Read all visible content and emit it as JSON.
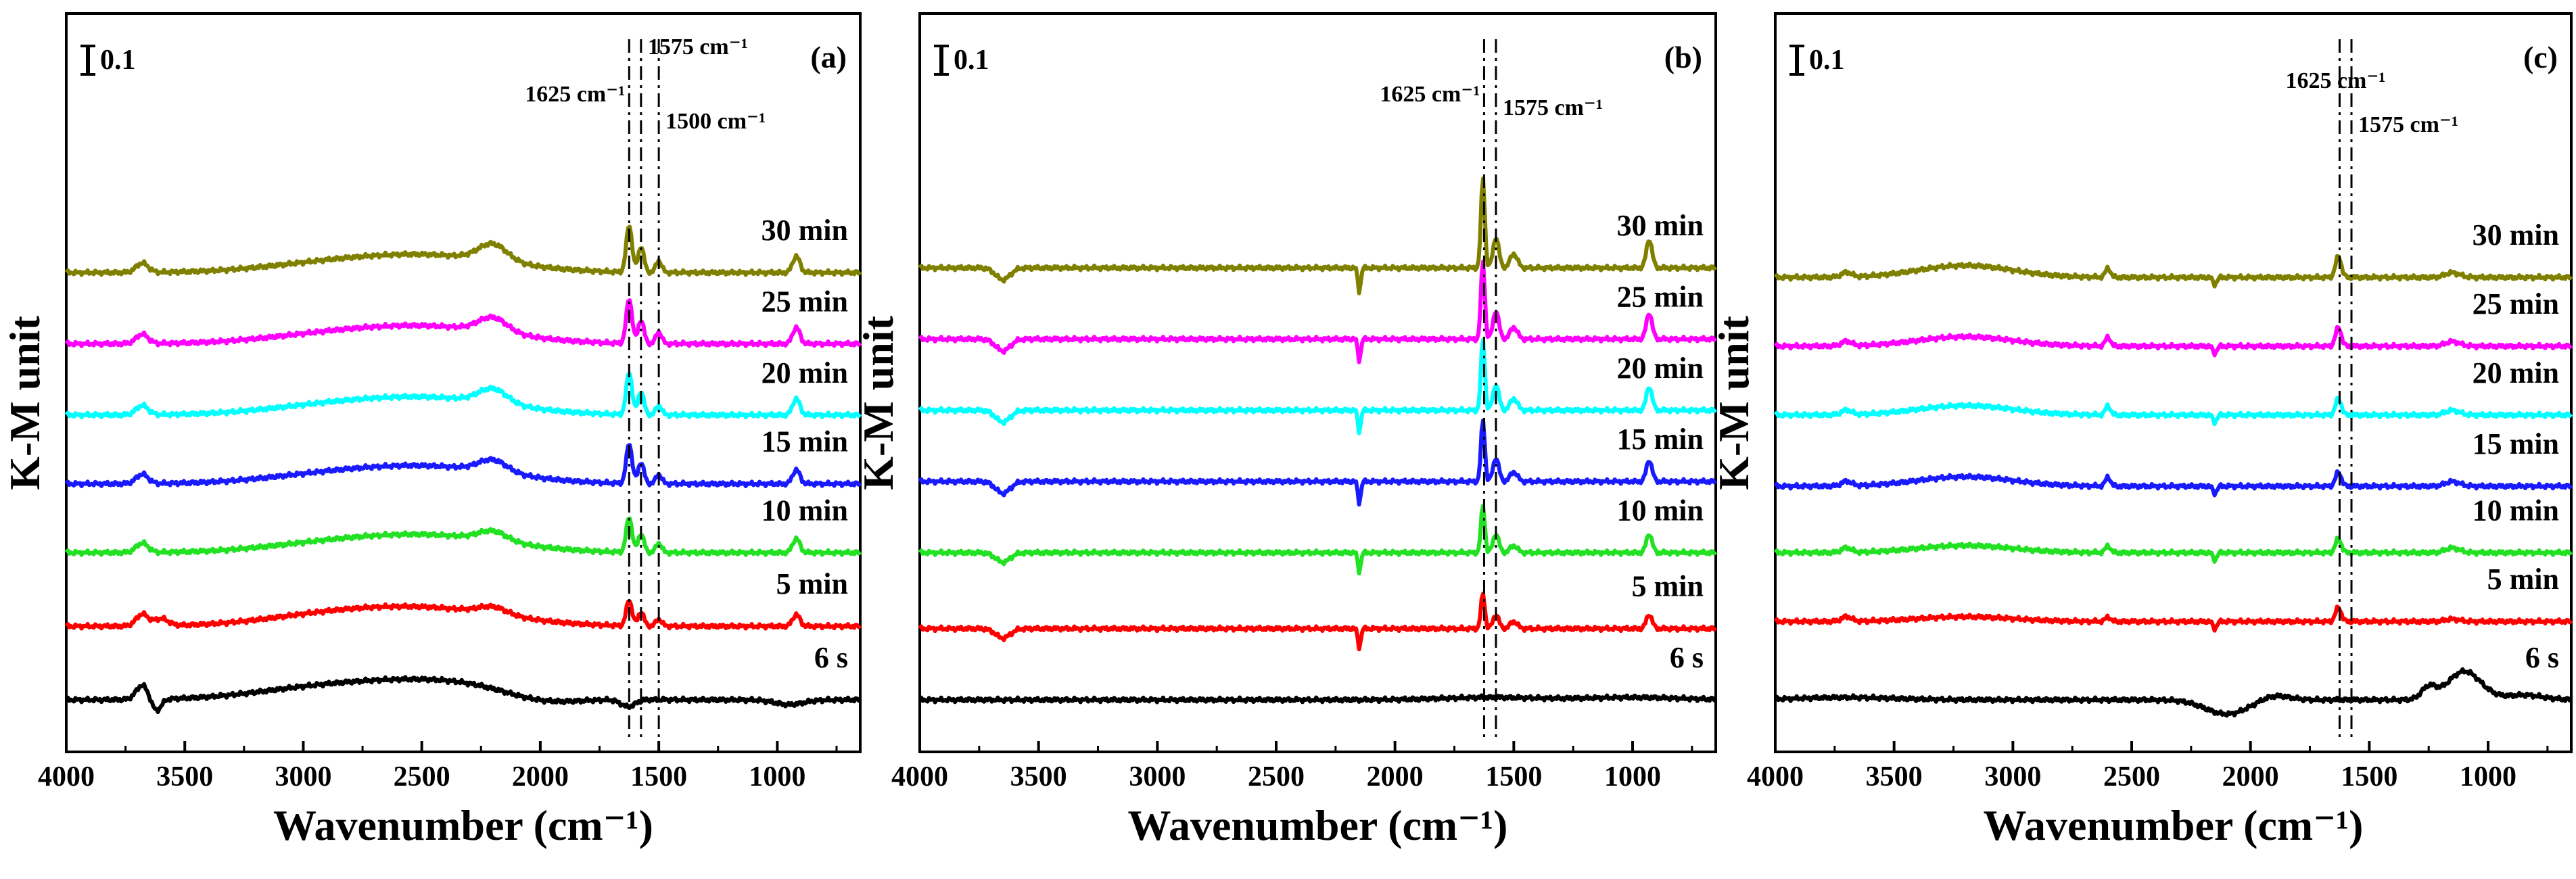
{
  "colors": {
    "6 s": "#000000",
    "5 min": "#ff0000",
    "10 min": "#22e122",
    "15 min": "#1a1aff",
    "20 min": "#00ffff",
    "25 min": "#ff00ff",
    "30 min": "#808000"
  },
  "chart_data": [
    {
      "type": "line",
      "panel_label": "(a)",
      "xlabel": "Wavenumber (cm⁻¹)",
      "ylabel": "K-M unit",
      "scale_bar_label": "0.1",
      "xlim": [
        4000,
        650
      ],
      "xticks": [
        "4000",
        "3500",
        "3000",
        "2500",
        "2000",
        "1500",
        "1000"
      ],
      "xtick_values": [
        4000,
        3500,
        3000,
        2500,
        2000,
        1500,
        1000
      ],
      "ylim": [
        -0.3,
        2.5
      ],
      "yticks": [],
      "grid": false,
      "reference_lines": [
        {
          "x": 1625,
          "label": "1625 cm⁻¹"
        },
        {
          "x": 1575,
          "label": "1575 cm⁻¹"
        },
        {
          "x": 1500,
          "label": "1500 cm⁻¹"
        }
      ],
      "series": [
        {
          "name": "6 s",
          "baseline": 0.0,
          "bumps": [
            [
              3680,
              0.06,
              25
            ],
            [
              3620,
              -0.05,
              20
            ],
            [
              2900,
              0.05,
              300
            ],
            [
              2400,
              0.07,
              300
            ],
            [
              2000,
              -0.03,
              150
            ],
            [
              1630,
              -0.03,
              30
            ],
            [
              950,
              -0.02,
              60
            ]
          ]
        },
        {
          "name": "5 min",
          "baseline": 0.31,
          "bumps": [
            [
              3680,
              0.05,
              25
            ],
            [
              3600,
              0.03,
              30
            ],
            [
              2850,
              0.05,
              300
            ],
            [
              2400,
              0.06,
              300
            ],
            [
              2200,
              0.03,
              60
            ],
            [
              1625,
              0.11,
              12
            ],
            [
              1575,
              0.06,
              12
            ],
            [
              1500,
              0.03,
              12
            ],
            [
              920,
              0.05,
              15
            ]
          ]
        },
        {
          "name": "10 min",
          "baseline": 0.62,
          "bumps": [
            [
              3680,
              0.04,
              25
            ],
            [
              2850,
              0.04,
              300
            ],
            [
              2400,
              0.06,
              300
            ],
            [
              2200,
              0.04,
              60
            ],
            [
              1625,
              0.15,
              12
            ],
            [
              1575,
              0.08,
              12
            ],
            [
              1500,
              0.04,
              12
            ],
            [
              920,
              0.06,
              15
            ]
          ]
        },
        {
          "name": "15 min",
          "baseline": 0.91,
          "bumps": [
            [
              3680,
              0.04,
              25
            ],
            [
              2850,
              0.04,
              300
            ],
            [
              2400,
              0.06,
              300
            ],
            [
              2200,
              0.05,
              60
            ],
            [
              1625,
              0.17,
              12
            ],
            [
              1575,
              0.09,
              12
            ],
            [
              1500,
              0.04,
              12
            ],
            [
              920,
              0.06,
              15
            ]
          ]
        },
        {
          "name": "20 min",
          "baseline": 1.2,
          "bumps": [
            [
              3680,
              0.04,
              25
            ],
            [
              2850,
              0.04,
              300
            ],
            [
              2400,
              0.06,
              300
            ],
            [
              2200,
              0.06,
              60
            ],
            [
              1625,
              0.18,
              12
            ],
            [
              1575,
              0.1,
              12
            ],
            [
              1500,
              0.04,
              12
            ],
            [
              920,
              0.07,
              15
            ]
          ]
        },
        {
          "name": "25 min",
          "baseline": 1.5,
          "bumps": [
            [
              3680,
              0.04,
              25
            ],
            [
              2850,
              0.04,
              300
            ],
            [
              2400,
              0.06,
              300
            ],
            [
              2200,
              0.06,
              60
            ],
            [
              1625,
              0.19,
              12
            ],
            [
              1575,
              0.1,
              12
            ],
            [
              1500,
              0.05,
              12
            ],
            [
              920,
              0.07,
              15
            ]
          ]
        },
        {
          "name": "30 min",
          "baseline": 1.8,
          "bumps": [
            [
              3680,
              0.04,
              25
            ],
            [
              2850,
              0.04,
              300
            ],
            [
              2400,
              0.06,
              300
            ],
            [
              2200,
              0.07,
              60
            ],
            [
              1625,
              0.2,
              12
            ],
            [
              1575,
              0.11,
              12
            ],
            [
              1500,
              0.05,
              12
            ],
            [
              920,
              0.07,
              15
            ]
          ]
        }
      ]
    },
    {
      "type": "line",
      "panel_label": "(b)",
      "xlabel": "Wavenumber (cm⁻¹)",
      "ylabel": "K-M unit",
      "scale_bar_label": "0.1",
      "xlim": [
        4000,
        650
      ],
      "xticks": [
        "4000",
        "3500",
        "3000",
        "2500",
        "2000",
        "1500",
        "1000"
      ],
      "xtick_values": [
        4000,
        3500,
        3000,
        2500,
        2000,
        1500,
        1000
      ],
      "ylim": [
        -0.3,
        2.5
      ],
      "yticks": [],
      "grid": false,
      "reference_lines": [
        {
          "x": 1625,
          "label": "1625 cm⁻¹"
        },
        {
          "x": 1575,
          "label": "1575 cm⁻¹"
        }
      ],
      "series": [
        {
          "name": "6 s",
          "baseline": 0.0,
          "bumps": [
            [
              1600,
              0.01,
              200
            ],
            [
              1000,
              0.01,
              200
            ]
          ]
        },
        {
          "name": "5 min",
          "baseline": 0.3,
          "bumps": [
            [
              3650,
              -0.04,
              30
            ],
            [
              2150,
              -0.08,
              6
            ],
            [
              1630,
              0.15,
              8
            ],
            [
              1575,
              0.06,
              12
            ],
            [
              1500,
              0.03,
              15
            ],
            [
              930,
              0.06,
              12
            ]
          ]
        },
        {
          "name": "10 min",
          "baseline": 0.62,
          "bumps": [
            [
              3650,
              -0.04,
              30
            ],
            [
              2150,
              -0.08,
              6
            ],
            [
              1630,
              0.2,
              8
            ],
            [
              1575,
              0.08,
              12
            ],
            [
              1500,
              0.03,
              15
            ],
            [
              930,
              0.08,
              12
            ]
          ]
        },
        {
          "name": "15 min",
          "baseline": 0.92,
          "bumps": [
            [
              3650,
              -0.05,
              30
            ],
            [
              2150,
              -0.09,
              6
            ],
            [
              1630,
              0.26,
              8
            ],
            [
              1575,
              0.1,
              12
            ],
            [
              1500,
              0.04,
              15
            ],
            [
              930,
              0.09,
              12
            ]
          ]
        },
        {
          "name": "20 min",
          "baseline": 1.22,
          "bumps": [
            [
              3650,
              -0.05,
              30
            ],
            [
              2150,
              -0.09,
              6
            ],
            [
              1630,
              0.3,
              8
            ],
            [
              1575,
              0.11,
              12
            ],
            [
              1500,
              0.05,
              15
            ],
            [
              930,
              0.1,
              12
            ]
          ]
        },
        {
          "name": "25 min",
          "baseline": 1.52,
          "bumps": [
            [
              3650,
              -0.05,
              30
            ],
            [
              2150,
              -0.09,
              6
            ],
            [
              1630,
              0.33,
              8
            ],
            [
              1575,
              0.12,
              12
            ],
            [
              1500,
              0.05,
              15
            ],
            [
              930,
              0.11,
              12
            ]
          ]
        },
        {
          "name": "30 min",
          "baseline": 1.82,
          "bumps": [
            [
              3650,
              -0.05,
              30
            ],
            [
              2150,
              -0.1,
              6
            ],
            [
              1630,
              0.38,
              8
            ],
            [
              1575,
              0.13,
              12
            ],
            [
              1500,
              0.06,
              15
            ],
            [
              930,
              0.12,
              12
            ]
          ]
        }
      ]
    },
    {
      "type": "line",
      "panel_label": "(c)",
      "xlabel": "Wavenumber (cm⁻¹)",
      "ylabel": "K-M unit",
      "scale_bar_label": "0.1",
      "xlim": [
        4000,
        650
      ],
      "xticks": [
        "4000",
        "3500",
        "3000",
        "2500",
        "2000",
        "1500",
        "1000"
      ],
      "xtick_values": [
        4000,
        3500,
        3000,
        2500,
        2000,
        1500,
        1000
      ],
      "ylim": [
        -0.3,
        2.5
      ],
      "yticks": [],
      "grid": false,
      "reference_lines": [
        {
          "x": 1625,
          "label": "1625 cm⁻¹"
        },
        {
          "x": 1575,
          "label": "1575 cm⁻¹"
        }
      ],
      "series": [
        {
          "name": "6 s",
          "baseline": 0.0,
          "bumps": [
            [
              3700,
              0.01,
              200
            ],
            [
              2100,
              -0.06,
              90
            ],
            [
              1900,
              0.02,
              60
            ],
            [
              1250,
              0.05,
              30
            ],
            [
              1100,
              0.12,
              70
            ],
            [
              850,
              0.02,
              80
            ]
          ]
        },
        {
          "name": "5 min",
          "baseline": 0.33,
          "bumps": [
            [
              3700,
              0.02,
              20
            ],
            [
              3200,
              0.02,
              200
            ],
            [
              2600,
              0.02,
              10
            ],
            [
              2150,
              -0.03,
              8
            ],
            [
              1630,
              0.06,
              12
            ],
            [
              1150,
              0.01,
              30
            ]
          ]
        },
        {
          "name": "10 min",
          "baseline": 0.62,
          "bumps": [
            [
              3700,
              0.02,
              20
            ],
            [
              3200,
              0.03,
              200
            ],
            [
              2600,
              0.03,
              10
            ],
            [
              2150,
              -0.03,
              8
            ],
            [
              1630,
              0.06,
              12
            ],
            [
              1150,
              0.02,
              30
            ]
          ]
        },
        {
          "name": "15 min",
          "baseline": 0.9,
          "bumps": [
            [
              3700,
              0.02,
              20
            ],
            [
              3200,
              0.04,
              200
            ],
            [
              2600,
              0.04,
              10
            ],
            [
              2150,
              -0.03,
              8
            ],
            [
              1630,
              0.06,
              12
            ],
            [
              1150,
              0.02,
              30
            ]
          ]
        },
        {
          "name": "20 min",
          "baseline": 1.2,
          "bumps": [
            [
              3700,
              0.02,
              20
            ],
            [
              3200,
              0.04,
              200
            ],
            [
              2600,
              0.04,
              10
            ],
            [
              2150,
              -0.03,
              8
            ],
            [
              1630,
              0.07,
              12
            ],
            [
              1150,
              0.02,
              30
            ]
          ]
        },
        {
          "name": "25 min",
          "baseline": 1.49,
          "bumps": [
            [
              3700,
              0.02,
              20
            ],
            [
              3200,
              0.04,
              200
            ],
            [
              2600,
              0.04,
              10
            ],
            [
              2150,
              -0.03,
              8
            ],
            [
              1630,
              0.08,
              12
            ],
            [
              1150,
              0.02,
              30
            ]
          ]
        },
        {
          "name": "30 min",
          "baseline": 1.78,
          "bumps": [
            [
              3700,
              0.02,
              20
            ],
            [
              3200,
              0.05,
              200
            ],
            [
              2600,
              0.04,
              10
            ],
            [
              2150,
              -0.03,
              8
            ],
            [
              1630,
              0.09,
              12
            ],
            [
              1150,
              0.02,
              30
            ]
          ]
        }
      ]
    }
  ]
}
